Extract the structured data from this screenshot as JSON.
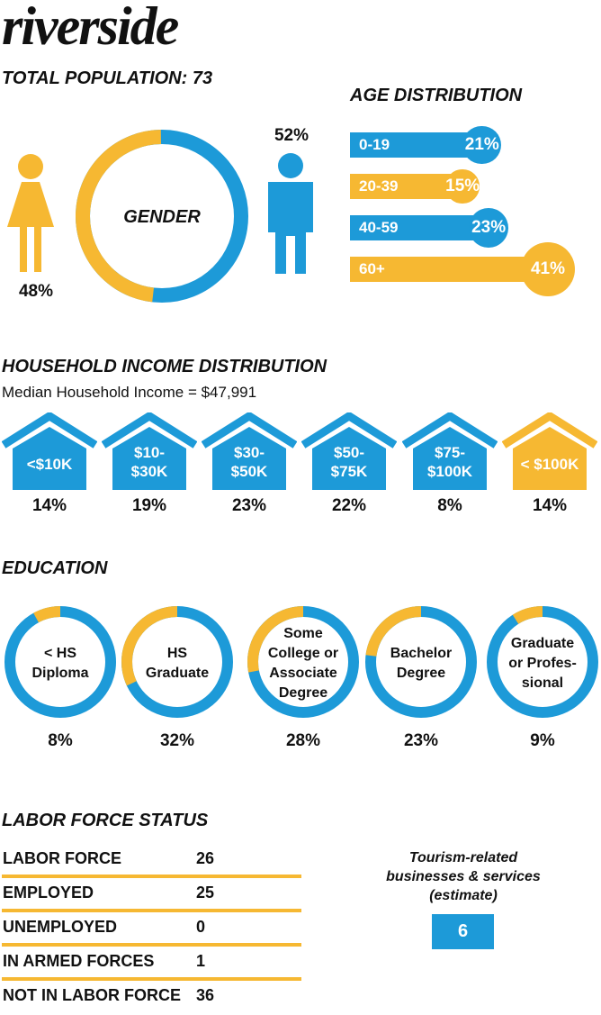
{
  "title": "riverside",
  "population": "TOTAL POPULATION: 73",
  "colors": {
    "blue": "#1d9ad8",
    "yellow": "#f6b832"
  },
  "gender": {
    "label": "GENDER",
    "female_pct": "48%",
    "male_pct": "52%",
    "female_value": 48,
    "male_value": 52
  },
  "age": {
    "title": "AGE DISTRIBUTION",
    "items": [
      {
        "range": "0-19",
        "pct": "21%",
        "value": 21,
        "color": "#1d9ad8"
      },
      {
        "range": "20-39",
        "pct": "15%",
        "value": 15,
        "color": "#f6b832"
      },
      {
        "range": "40-59",
        "pct": "23%",
        "value": 23,
        "color": "#1d9ad8"
      },
      {
        "range": "60+",
        "pct": "41%",
        "value": 41,
        "color": "#f6b832"
      }
    ]
  },
  "income": {
    "title": "HOUSEHOLD INCOME DISTRIBUTION",
    "median": "Median Household Income = $47,991",
    "items": [
      {
        "line1": "<$10K",
        "line2": "",
        "pct": "14%",
        "value": 14,
        "color": "#1d9ad8"
      },
      {
        "line1": "$10-",
        "line2": "$30K",
        "pct": "19%",
        "value": 19,
        "color": "#1d9ad8"
      },
      {
        "line1": "$30-",
        "line2": "$50K",
        "pct": "23%",
        "value": 23,
        "color": "#1d9ad8"
      },
      {
        "line1": "$50-",
        "line2": "$75K",
        "pct": "22%",
        "value": 22,
        "color": "#1d9ad8"
      },
      {
        "line1": "$75-",
        "line2": "$100K",
        "pct": "8%",
        "value": 8,
        "color": "#1d9ad8"
      },
      {
        "line1": "< $100K",
        "line2": "",
        "pct": "14%",
        "value": 14,
        "color": "#f6b832"
      }
    ]
  },
  "education": {
    "title": "EDUCATION",
    "items": [
      {
        "lines": [
          "< HS",
          "Diploma"
        ],
        "pct": "8%",
        "value": 8
      },
      {
        "lines": [
          "HS",
          "Graduate"
        ],
        "pct": "32%",
        "value": 32
      },
      {
        "lines": [
          "Some",
          "College or",
          "Associate",
          "Degree"
        ],
        "pct": "28%",
        "value": 28
      },
      {
        "lines": [
          "Bachelor",
          "Degree"
        ],
        "pct": "23%",
        "value": 23
      },
      {
        "lines": [
          "Graduate",
          "or Profes-",
          "sional"
        ],
        "pct": "9%",
        "value": 9
      }
    ]
  },
  "labor": {
    "title": "LABOR FORCE STATUS",
    "rows": [
      {
        "label": "LABOR FORCE",
        "value": "26"
      },
      {
        "label": "EMPLOYED",
        "value": "25"
      },
      {
        "label": "UNEMPLOYED",
        "value": "0"
      },
      {
        "label": "IN ARMED FORCES",
        "value": "1"
      },
      {
        "label": "NOT IN LABOR FORCE",
        "value": "36"
      }
    ]
  },
  "tourism": {
    "lines": [
      "Tourism-related",
      "businesses & services",
      "(estimate)"
    ],
    "value": "6"
  },
  "chart_data": [
    {
      "type": "pie",
      "title": "GENDER",
      "categories": [
        "Female",
        "Male"
      ],
      "values": [
        48,
        52
      ]
    },
    {
      "type": "bar",
      "title": "AGE DISTRIBUTION",
      "categories": [
        "0-19",
        "20-39",
        "40-59",
        "60+"
      ],
      "values": [
        21,
        15,
        23,
        41
      ]
    },
    {
      "type": "bar",
      "title": "HOUSEHOLD INCOME DISTRIBUTION",
      "categories": [
        "<$10K",
        "$10-$30K",
        "$30-$50K",
        "$50-$75K",
        "$75-$100K",
        "< $100K"
      ],
      "values": [
        14,
        19,
        23,
        22,
        8,
        14
      ]
    },
    {
      "type": "pie",
      "title": "EDUCATION",
      "categories": [
        "< HS Diploma",
        "HS Graduate",
        "Some College or Associate Degree",
        "Bachelor Degree",
        "Graduate or Professional"
      ],
      "values": [
        8,
        32,
        28,
        23,
        9
      ]
    },
    {
      "type": "table",
      "title": "LABOR FORCE STATUS",
      "categories": [
        "LABOR FORCE",
        "EMPLOYED",
        "UNEMPLOYED",
        "IN ARMED FORCES",
        "NOT IN LABOR FORCE"
      ],
      "values": [
        26,
        25,
        0,
        1,
        36
      ]
    }
  ]
}
